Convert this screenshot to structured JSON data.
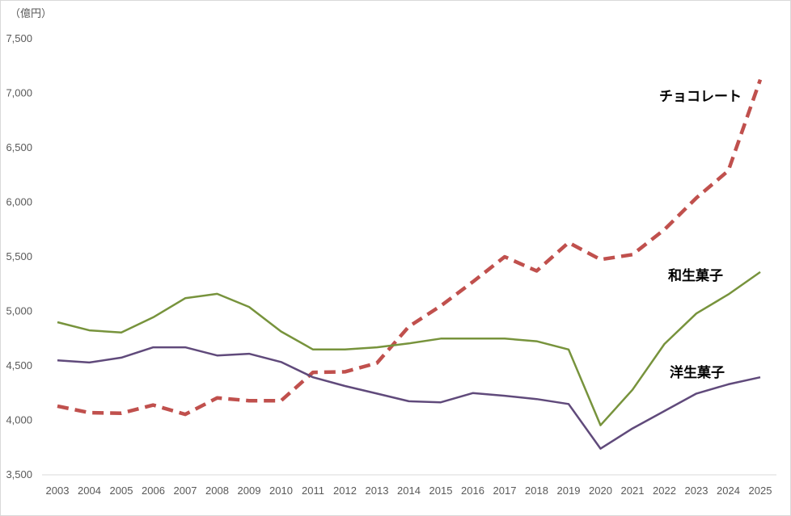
{
  "chart_data": {
    "type": "line",
    "ylabel": "（億円）",
    "ylim": [
      3500,
      7500
    ],
    "yticks": [
      "3,500",
      "4,000",
      "4,500",
      "5,000",
      "5,500",
      "6,000",
      "6,500",
      "7,000",
      "7,500"
    ],
    "x": [
      "2003",
      "2004",
      "2005",
      "2006",
      "2007",
      "2008",
      "2009",
      "2010",
      "2011",
      "2012",
      "2013",
      "2014",
      "2015",
      "2016",
      "2017",
      "2018",
      "2019",
      "2020",
      "2021",
      "2022",
      "2023",
      "2024",
      "2025"
    ],
    "grid": false,
    "legend": "none (series labelled directly)",
    "series": [
      {
        "name": "チョコレート",
        "color": "#c0504d",
        "style": "dashed",
        "values": [
          4130,
          4070,
          4065,
          4140,
          4055,
          4205,
          4180,
          4180,
          4440,
          4445,
          4525,
          4860,
          5050,
          5270,
          5500,
          5370,
          5630,
          5475,
          5520,
          5750,
          6040,
          6290,
          7125
        ]
      },
      {
        "name": "和生菓子",
        "color": "#77933c",
        "style": "solid",
        "values": [
          4900,
          4825,
          4805,
          4945,
          5120,
          5160,
          5040,
          4815,
          4650,
          4650,
          4670,
          4705,
          4750,
          4750,
          4750,
          4725,
          4650,
          3955,
          4280,
          4700,
          4980,
          5155,
          5360
        ]
      },
      {
        "name": "洋生菓子",
        "color": "#604a7b",
        "style": "solid",
        "values": [
          4550,
          4530,
          4575,
          4670,
          4670,
          4595,
          4610,
          4535,
          4395,
          4315,
          4245,
          4175,
          4165,
          4250,
          4225,
          4195,
          4150,
          3740,
          3925,
          4085,
          4245,
          4330,
          4395
        ]
      }
    ]
  }
}
